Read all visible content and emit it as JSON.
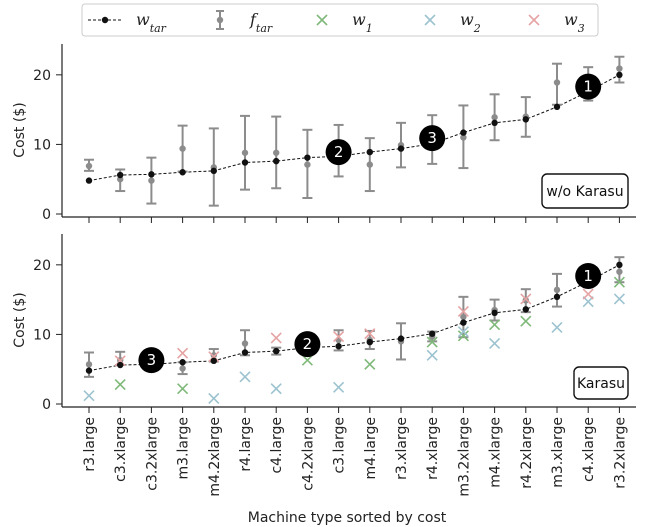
{
  "legend": [
    {
      "key": "w_tar",
      "base": "w",
      "sub": "tar",
      "color": "#111111",
      "marker": "dot-dashed-line"
    },
    {
      "key": "f_tar",
      "base": "f",
      "sub": "tar",
      "color": "#8c8c8c",
      "marker": "errorbar"
    },
    {
      "key": "w1",
      "base": "w",
      "sub": "1",
      "color": "#7fb97a",
      "marker": "x"
    },
    {
      "key": "w2",
      "base": "w",
      "sub": "2",
      "color": "#9cc3cf",
      "marker": "x"
    },
    {
      "key": "w3",
      "base": "w",
      "sub": "3",
      "color": "#e6a3a3",
      "marker": "x"
    }
  ],
  "xlabel": "Machine type sorted by cost",
  "chart_data": [
    {
      "type": "scatter",
      "panel_label": "w/o Karasu",
      "ylabel": "Cost ($)",
      "ylim": [
        0,
        24
      ],
      "yticks": [
        0,
        10,
        20
      ],
      "categories": [
        "r3.large",
        "c3.xlarge",
        "c3.2xlarge",
        "m3.large",
        "m4.2xlarge",
        "r4.large",
        "c4.large",
        "c4.2xlarge",
        "c3.large",
        "m4.large",
        "r3.xlarge",
        "r4.xlarge",
        "m3.2xlarge",
        "m4.xlarge",
        "r4.2xlarge",
        "m3.xlarge",
        "c4.xlarge",
        "r3.2xlarge"
      ],
      "series": [
        {
          "key": "w_tar",
          "values": [
            4.8,
            5.6,
            5.7,
            6.0,
            6.2,
            7.4,
            7.6,
            8.1,
            8.3,
            8.9,
            9.4,
            10.1,
            11.7,
            13.1,
            13.6,
            15.4,
            17.6,
            20.0
          ]
        },
        {
          "key": "f_tar",
          "values": [
            6.9,
            5.0,
            4.8,
            9.4,
            6.7,
            8.8,
            8.8,
            7.1,
            9.2,
            7.1,
            9.9,
            10.7,
            11.0,
            13.9,
            14.0,
            18.9,
            18.8,
            20.9
          ],
          "err_low": [
            6.2,
            3.3,
            1.5,
            6.1,
            1.2,
            3.5,
            3.7,
            2.3,
            5.4,
            3.3,
            6.7,
            7.2,
            6.6,
            10.6,
            11.1,
            15.7,
            16.3,
            18.9
          ],
          "err_high": [
            7.8,
            6.4,
            8.1,
            12.7,
            12.3,
            14.1,
            14.0,
            12.1,
            12.8,
            10.9,
            13.1,
            14.2,
            15.6,
            17.2,
            16.8,
            21.6,
            21.1,
            22.6
          ]
        }
      ],
      "badges": [
        {
          "text": "1",
          "x": 16.0,
          "y": 18.3
        },
        {
          "text": "2",
          "x": 8.0,
          "y": 8.9
        },
        {
          "text": "3",
          "x": 11.0,
          "y": 10.9
        }
      ]
    },
    {
      "type": "scatter",
      "panel_label": "Karasu",
      "ylabel": "Cost ($)",
      "ylim": [
        0,
        24
      ],
      "yticks": [
        0,
        10,
        20
      ],
      "categories": [
        "r3.large",
        "c3.xlarge",
        "c3.2xlarge",
        "m3.large",
        "m4.2xlarge",
        "r4.large",
        "c4.large",
        "c4.2xlarge",
        "c3.large",
        "m4.large",
        "r3.xlarge",
        "r4.xlarge",
        "m3.2xlarge",
        "m4.xlarge",
        "r4.2xlarge",
        "m3.xlarge",
        "c4.xlarge",
        "r3.2xlarge"
      ],
      "series": [
        {
          "key": "w_tar",
          "values": [
            4.8,
            5.6,
            5.7,
            6.0,
            6.2,
            7.4,
            7.6,
            8.1,
            8.3,
            8.9,
            9.4,
            10.1,
            11.7,
            13.1,
            13.6,
            15.4,
            17.6,
            20.0
          ]
        },
        {
          "key": "f_tar",
          "values": [
            5.7,
            6.3,
            5.9,
            5.1,
            7.0,
            8.7,
            7.6,
            8.5,
            9.2,
            9.2,
            9.0,
            9.7,
            12.5,
            13.5,
            14.9,
            16.4,
            17.8,
            19.0
          ],
          "err_low": [
            3.9,
            5.6,
            5.3,
            4.3,
            6.1,
            7.0,
            7.1,
            7.6,
            7.7,
            7.9,
            6.4,
            9.0,
            9.6,
            12.0,
            13.2,
            14.0,
            16.8,
            17.5
          ],
          "err_high": [
            7.4,
            7.5,
            6.6,
            6.0,
            7.9,
            10.6,
            8.1,
            9.4,
            10.6,
            10.5,
            11.6,
            10.4,
            15.4,
            15.0,
            16.5,
            18.7,
            18.9,
            21.1
          ]
        },
        {
          "key": "w1",
          "values": [
            null,
            2.8,
            null,
            2.2,
            null,
            null,
            null,
            6.3,
            null,
            5.7,
            null,
            8.9,
            9.8,
            11.4,
            11.9,
            null,
            null,
            17.5
          ]
        },
        {
          "key": "w2",
          "values": [
            1.2,
            null,
            null,
            null,
            0.8,
            3.9,
            2.2,
            null,
            2.4,
            null,
            null,
            7.0,
            10.4,
            8.7,
            null,
            11.0,
            14.7,
            15.1
          ]
        },
        {
          "key": "w3",
          "values": [
            null,
            6.2,
            null,
            7.3,
            6.8,
            null,
            9.5,
            null,
            9.7,
            10.1,
            null,
            null,
            13.3,
            null,
            15.1,
            null,
            15.8,
            null
          ]
        }
      ],
      "badges": [
        {
          "text": "1",
          "x": 16.0,
          "y": 18.4
        },
        {
          "text": "2",
          "x": 7.0,
          "y": 8.6
        },
        {
          "text": "3",
          "x": 2.0,
          "y": 6.3
        }
      ]
    }
  ]
}
